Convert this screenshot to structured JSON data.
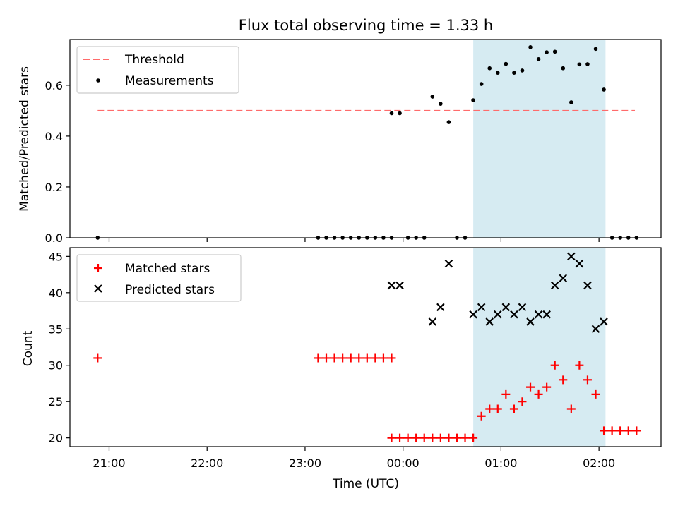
{
  "colors": {
    "threshold": "#ff6b6b",
    "measurement": "#000000",
    "matched": "#ff0000",
    "predicted": "#000000",
    "span": "#add8e6"
  },
  "chart_data": [
    {
      "type": "scatter",
      "title": "Flux total observing time = 1.33 h",
      "xlabel": "",
      "ylabel": "Matched/Predicted stars",
      "xlim": [
        "20:36",
        "02:38"
      ],
      "ylim": [
        0,
        0.78
      ],
      "yticks": [
        "0.0",
        "0.2",
        "0.4",
        "0.6"
      ],
      "highlight_span": [
        "00:43",
        "02:04"
      ],
      "threshold": {
        "name": "Threshold",
        "value": 0.5,
        "x_range": [
          "20:53",
          "02:22"
        ],
        "style": "dashed"
      },
      "legend": {
        "placement": "top-left",
        "entries": [
          "Threshold",
          "Measurements"
        ]
      },
      "series": [
        {
          "name": "Measurements",
          "points": [
            [
              "20:53",
              0.0
            ],
            [
              "23:08",
              0.0
            ],
            [
              "23:13",
              0.0
            ],
            [
              "23:18",
              0.0
            ],
            [
              "23:23",
              0.0
            ],
            [
              "23:28",
              0.0
            ],
            [
              "23:33",
              0.0
            ],
            [
              "23:38",
              0.0
            ],
            [
              "23:43",
              0.0
            ],
            [
              "23:48",
              0.0
            ],
            [
              "23:53",
              0.0
            ],
            [
              "23:53",
              0.49
            ],
            [
              "23:58",
              0.49
            ],
            [
              "00:03",
              0.0
            ],
            [
              "00:08",
              0.0
            ],
            [
              "00:13",
              0.0
            ],
            [
              "00:18",
              0.555
            ],
            [
              "00:23",
              0.527
            ],
            [
              "00:28",
              0.455
            ],
            [
              "00:33",
              0.0
            ],
            [
              "00:38",
              0.0
            ],
            [
              "00:43",
              0.541
            ],
            [
              "00:48",
              0.605
            ],
            [
              "00:53",
              0.667
            ],
            [
              "00:58",
              0.649
            ],
            [
              "01:03",
              0.684
            ],
            [
              "01:08",
              0.649
            ],
            [
              "01:13",
              0.658
            ],
            [
              "01:18",
              0.75
            ],
            [
              "01:23",
              0.703
            ],
            [
              "01:28",
              0.73
            ],
            [
              "01:33",
              0.732
            ],
            [
              "01:38",
              0.667
            ],
            [
              "01:43",
              0.533
            ],
            [
              "01:48",
              0.682
            ],
            [
              "01:53",
              0.683
            ],
            [
              "01:58",
              0.743
            ],
            [
              "02:03",
              0.583
            ],
            [
              "02:08",
              0.0
            ],
            [
              "02:13",
              0.0
            ],
            [
              "02:18",
              0.0
            ],
            [
              "02:23",
              0.0
            ]
          ]
        }
      ]
    },
    {
      "type": "scatter",
      "title": "",
      "xlabel": "Time (UTC)",
      "ylabel": "Count",
      "xlim": [
        "20:36",
        "02:38"
      ],
      "ylim": [
        18.8,
        46.2
      ],
      "xticks": [
        "21:00",
        "22:00",
        "23:00",
        "00:00",
        "01:00",
        "02:00"
      ],
      "yticks": [
        "20",
        "25",
        "30",
        "35",
        "40",
        "45"
      ],
      "highlight_span": [
        "00:43",
        "02:04"
      ],
      "legend": {
        "placement": "top-left",
        "entries": [
          "Matched stars",
          "Predicted stars"
        ]
      },
      "series": [
        {
          "name": "Matched stars",
          "marker": "plus",
          "points": [
            [
              "20:53",
              31
            ],
            [
              "23:08",
              31
            ],
            [
              "23:13",
              31
            ],
            [
              "23:18",
              31
            ],
            [
              "23:23",
              31
            ],
            [
              "23:28",
              31
            ],
            [
              "23:33",
              31
            ],
            [
              "23:38",
              31
            ],
            [
              "23:43",
              31
            ],
            [
              "23:48",
              31
            ],
            [
              "23:53",
              31
            ],
            [
              "23:53",
              20
            ],
            [
              "23:58",
              20
            ],
            [
              "00:03",
              20
            ],
            [
              "00:08",
              20
            ],
            [
              "00:13",
              20
            ],
            [
              "00:18",
              20
            ],
            [
              "00:23",
              20
            ],
            [
              "00:28",
              20
            ],
            [
              "00:33",
              20
            ],
            [
              "00:38",
              20
            ],
            [
              "00:43",
              20
            ],
            [
              "00:48",
              23
            ],
            [
              "00:53",
              24
            ],
            [
              "00:58",
              24
            ],
            [
              "01:03",
              26
            ],
            [
              "01:08",
              24
            ],
            [
              "01:13",
              25
            ],
            [
              "01:18",
              27
            ],
            [
              "01:23",
              26
            ],
            [
              "01:28",
              27
            ],
            [
              "01:33",
              30
            ],
            [
              "01:38",
              28
            ],
            [
              "01:43",
              24
            ],
            [
              "01:48",
              30
            ],
            [
              "01:53",
              28
            ],
            [
              "01:58",
              26
            ],
            [
              "02:03",
              21
            ],
            [
              "02:08",
              21
            ],
            [
              "02:13",
              21
            ],
            [
              "02:18",
              21
            ],
            [
              "02:23",
              21
            ]
          ]
        },
        {
          "name": "Predicted stars",
          "marker": "x",
          "points": [
            [
              "23:53",
              41
            ],
            [
              "23:58",
              41
            ],
            [
              "00:18",
              36
            ],
            [
              "00:23",
              38
            ],
            [
              "00:28",
              44
            ],
            [
              "00:43",
              37
            ],
            [
              "00:48",
              38
            ],
            [
              "00:53",
              36
            ],
            [
              "00:58",
              37
            ],
            [
              "01:03",
              38
            ],
            [
              "01:08",
              37
            ],
            [
              "01:13",
              38
            ],
            [
              "01:18",
              36
            ],
            [
              "01:23",
              37
            ],
            [
              "01:28",
              37
            ],
            [
              "01:33",
              41
            ],
            [
              "01:38",
              42
            ],
            [
              "01:43",
              45
            ],
            [
              "01:48",
              44
            ],
            [
              "01:53",
              41
            ],
            [
              "01:58",
              35
            ],
            [
              "02:03",
              36
            ]
          ]
        }
      ]
    }
  ]
}
